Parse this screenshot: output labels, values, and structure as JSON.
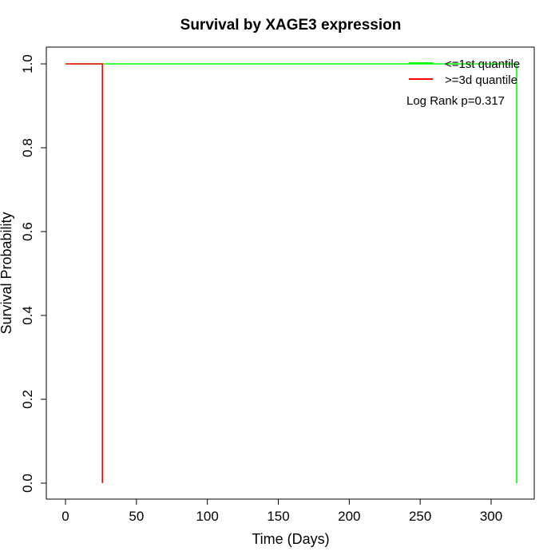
{
  "chart_data": {
    "type": "line",
    "title": "Survival by XAGE3 expression",
    "xlabel": "Time (Days)",
    "ylabel": "Survival Probability",
    "xlim": [
      0,
      325
    ],
    "ylim": [
      0,
      1
    ],
    "x_ticks": [
      "0",
      "50",
      "100",
      "150",
      "200",
      "250",
      "300"
    ],
    "y_ticks": [
      "0.0",
      "0.2",
      "0.4",
      "0.6",
      "0.8",
      "1.0"
    ],
    "grid": false,
    "legend_position": "top-right",
    "annotation": "Log Rank p=0.317",
    "series": [
      {
        "name": "<=1st quantile",
        "color": "#00ff00",
        "steps": [
          [
            0,
            1.0
          ],
          [
            318,
            1.0
          ],
          [
            318,
            0.0
          ]
        ]
      },
      {
        "name": ">=3d quantile",
        "color": "#ff0000",
        "steps": [
          [
            0,
            1.0
          ],
          [
            26,
            1.0
          ],
          [
            26,
            0.0
          ]
        ]
      }
    ]
  }
}
